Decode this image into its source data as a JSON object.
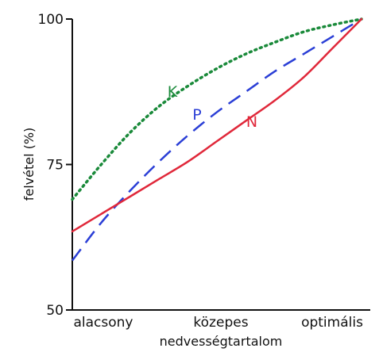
{
  "chart_data": {
    "type": "line",
    "xlabel": "nedvességtartalom",
    "ylabel": "felvétel (%)",
    "categories": [
      "alacsony",
      "közepes",
      "optimális"
    ],
    "x_ticks": [
      0,
      0.5,
      1
    ],
    "y_ticks": [
      50,
      75,
      100
    ],
    "xlim": [
      0,
      1
    ],
    "ylim": [
      50,
      100
    ],
    "grid": false,
    "series": [
      {
        "name": "K",
        "style": "dotted",
        "color": "#1a8a3a",
        "x": [
          0,
          0.1,
          0.2,
          0.3,
          0.4,
          0.5,
          0.6,
          0.7,
          0.8,
          0.9,
          1
        ],
        "values": [
          69,
          75,
          80.5,
          85,
          88.5,
          91.5,
          94,
          96,
          97.8,
          99,
          100
        ]
      },
      {
        "name": "P",
        "style": "dashed",
        "color": "#2b3fd6",
        "x": [
          0,
          0.1,
          0.2,
          0.3,
          0.4,
          0.5,
          0.6,
          0.7,
          0.8,
          0.9,
          1
        ],
        "values": [
          58.5,
          65,
          70.5,
          75.5,
          80,
          84,
          87.5,
          91,
          94,
          97,
          100
        ]
      },
      {
        "name": "N",
        "style": "solid",
        "color": "#e0283a",
        "x": [
          0,
          0.1,
          0.2,
          0.3,
          0.4,
          0.5,
          0.6,
          0.7,
          0.8,
          0.9,
          1
        ],
        "values": [
          63.5,
          66.5,
          69.5,
          72.5,
          75.5,
          79,
          82.5,
          86,
          90,
          95,
          100
        ]
      }
    ]
  }
}
